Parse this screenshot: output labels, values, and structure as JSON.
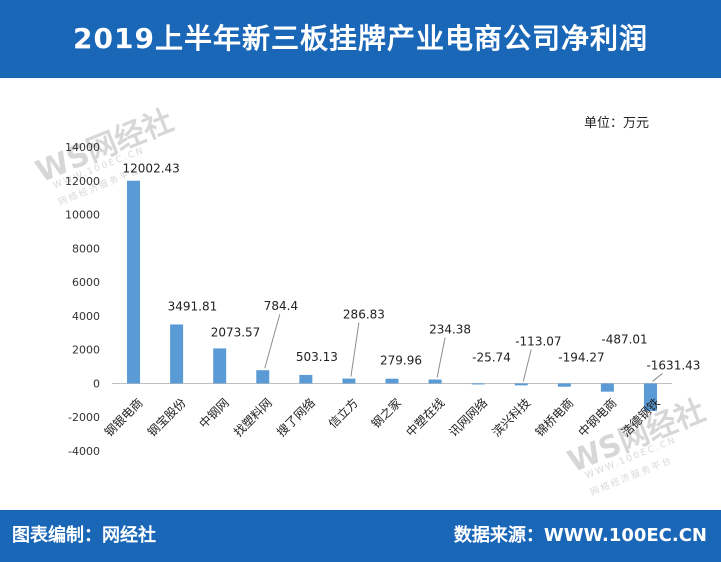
{
  "header": {
    "title": "2019上半年新三板挂牌产业电商公司净利润"
  },
  "unit_label": "单位：万元",
  "footer": {
    "left": "图表编制：网经社",
    "right": "数据来源：WWW.100EC.CN"
  },
  "watermark": {
    "brand": "WS网经社",
    "sub1": "WWW.100EC.CN",
    "sub2": "网络经济服务平台"
  },
  "colors": {
    "header_bg": "#1a67b8",
    "bar": "#5b9bd5"
  },
  "chart_data": {
    "type": "bar",
    "categories": [
      "钢银电商",
      "钢宝股份",
      "中钢网",
      "找塑料网",
      "搜了网络",
      "信立方",
      "钢之家",
      "中塑在线",
      "讯网网络",
      "滨兴科技",
      "锦桥电商",
      "中钢电商",
      "浩德钢铁"
    ],
    "values": [
      12002.43,
      3491.81,
      2073.57,
      784.4,
      503.13,
      286.83,
      279.96,
      234.38,
      -25.74,
      -113.07,
      -194.27,
      -487.01,
      -1631.43
    ],
    "value_labels": [
      "12002.43",
      "3491.81",
      "2073.57",
      "784.4",
      "503.13",
      "286.83",
      "279.96",
      "234.38",
      "-25.74",
      "-113.07",
      "-194.27",
      "-487.01",
      "-1631.43"
    ],
    "y_ticks": [
      "14000",
      "12000",
      "10000",
      "8000",
      "6000",
      "4000",
      "2000",
      "0",
      "-2000",
      "-4000"
    ],
    "ylim": [
      -4000,
      14000
    ],
    "title": "",
    "xlabel": "",
    "ylabel": "万元",
    "grid": false,
    "legend": "none"
  }
}
